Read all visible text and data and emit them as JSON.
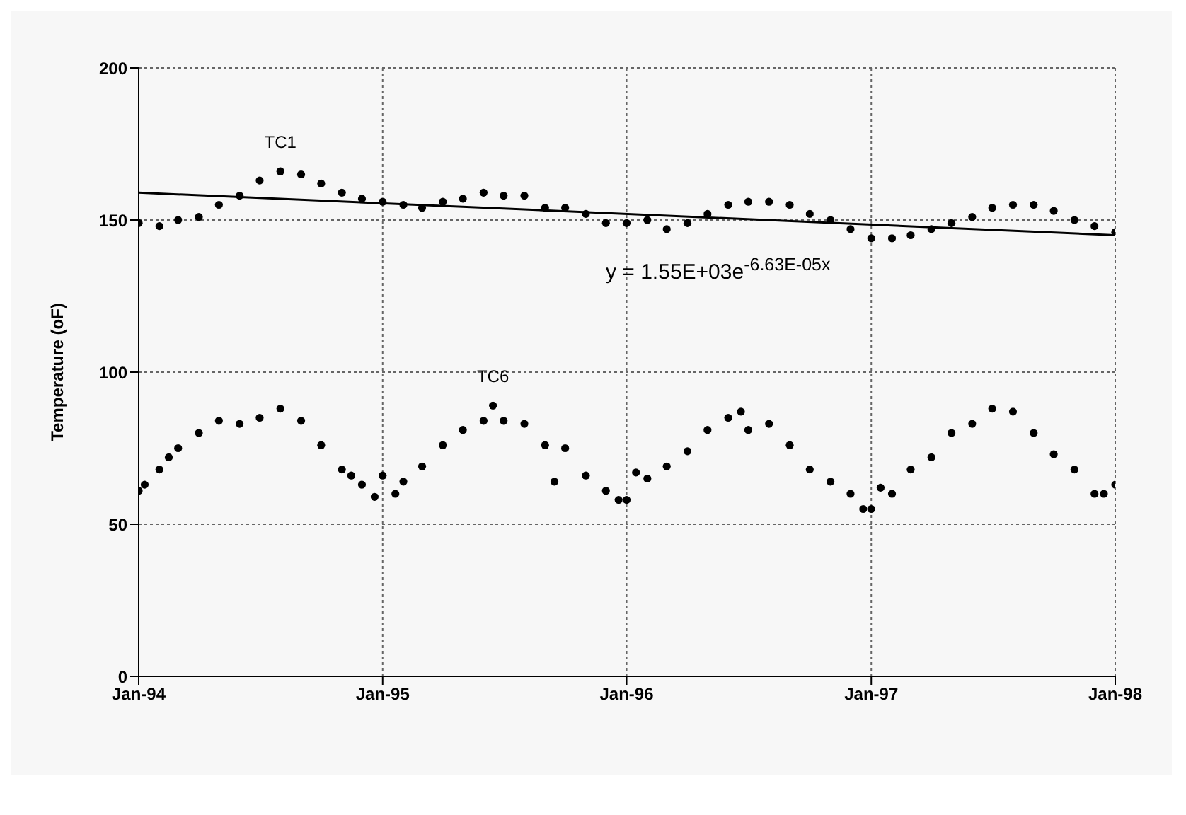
{
  "chart_data": {
    "type": "scatter",
    "ylabel": "Temperature (oF)",
    "ylim": [
      0,
      200
    ],
    "yticks": [
      0,
      50,
      100,
      150,
      200
    ],
    "xlim": [
      "1994-01",
      "1998-01"
    ],
    "xticks": [
      {
        "value": "1994-01",
        "label": "Jan-94"
      },
      {
        "value": "1995-01",
        "label": "Jan-95"
      },
      {
        "value": "1996-01",
        "label": "Jan-96"
      },
      {
        "value": "1997-01",
        "label": "Jan-97"
      },
      {
        "value": "1998-01",
        "label": "Jan-98"
      }
    ],
    "grid": true,
    "legend": false,
    "marker": "circle",
    "annotations": [
      "y = 1.55E+03e$^{-6.63E-05x}$"
    ],
    "series": [
      {
        "name": "TC1",
        "color": "#000000",
        "x": [
          "1994-01",
          "1994-02",
          "1994-03",
          "1994-04",
          "1994-05",
          "1994-06",
          "1994-07",
          "1994-08",
          "1994-09",
          "1994-10",
          "1994-11",
          "1994-12",
          "1995-01",
          "1995-02",
          "1995-03",
          "1995-04",
          "1995-05",
          "1995-06",
          "1995-07",
          "1995-08",
          "1995-09",
          "1995-10",
          "1995-11",
          "1995-12",
          "1996-01",
          "1996-02",
          "1996-03",
          "1996-04",
          "1996-05",
          "1996-06",
          "1996-07",
          "1996-08",
          "1996-09",
          "1996-10",
          "1996-11",
          "1996-12",
          "1997-01",
          "1997-02",
          "1997-03",
          "1997-04",
          "1997-05",
          "1997-06",
          "1997-07",
          "1997-08",
          "1997-09",
          "1997-10",
          "1997-11",
          "1997-12",
          "1998-01"
        ],
        "values": [
          149,
          148,
          150,
          151,
          155,
          158,
          163,
          166,
          165,
          162,
          159,
          157,
          156,
          155,
          154,
          156,
          157,
          159,
          158,
          158,
          154,
          154,
          152,
          149,
          149,
          150,
          147,
          149,
          152,
          155,
          156,
          156,
          155,
          152,
          150,
          147,
          144,
          144,
          145,
          147,
          149,
          151,
          154,
          155,
          155,
          153,
          150,
          148,
          146
        ]
      },
      {
        "name": "TC6",
        "color": "#000000",
        "x": [
          "1994-01",
          "1994-01-10",
          "1994-02",
          "1994-02-15",
          "1994-03",
          "1994-04",
          "1994-05",
          "1994-06",
          "1994-07",
          "1994-08",
          "1994-09",
          "1994-10",
          "1994-11",
          "1994-11-15",
          "1994-12",
          "1994-12-20",
          "1995-01",
          "1995-01-20",
          "1995-02",
          "1995-03",
          "1995-04",
          "1995-05",
          "1995-06",
          "1995-06-15",
          "1995-07",
          "1995-08",
          "1995-09",
          "1995-09-15",
          "1995-10",
          "1995-11",
          "1995-12",
          "1995-12-20",
          "1996-01",
          "1996-01-15",
          "1996-02",
          "1996-03",
          "1996-04",
          "1996-05",
          "1996-06",
          "1996-06-20",
          "1996-07",
          "1996-08",
          "1996-09",
          "1996-10",
          "1996-11",
          "1996-12",
          "1996-12-20",
          "1997-01",
          "1997-01-15",
          "1997-02",
          "1997-03",
          "1997-04",
          "1997-05",
          "1997-06",
          "1997-07",
          "1997-08",
          "1997-09",
          "1997-10",
          "1997-11",
          "1997-12",
          "1997-12-15",
          "1998-01"
        ],
        "values": [
          61,
          63,
          68,
          72,
          75,
          80,
          84,
          83,
          85,
          88,
          84,
          76,
          68,
          66,
          63,
          59,
          66,
          60,
          64,
          69,
          76,
          81,
          84,
          89,
          84,
          83,
          76,
          64,
          75,
          66,
          61,
          58,
          58,
          67,
          65,
          69,
          74,
          81,
          85,
          87,
          81,
          83,
          76,
          68,
          64,
          60,
          55,
          55,
          62,
          60,
          68,
          72,
          80,
          83,
          88,
          87,
          80,
          73,
          68,
          60,
          60,
          63
        ]
      },
      {
        "type": "line",
        "color": "#000000",
        "line_style": "solid",
        "marker": "none",
        "x": [
          "1994-01",
          "1998-01"
        ],
        "values": [
          159,
          145
        ]
      }
    ]
  }
}
